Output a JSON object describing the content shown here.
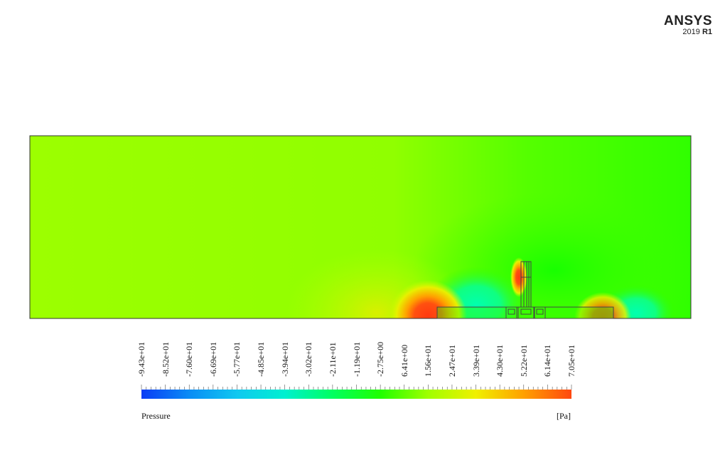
{
  "logo": {
    "brand": "ANSYS",
    "version": "2019",
    "release": "R1"
  },
  "chart_data": {
    "type": "heatmap",
    "title": "",
    "variable": "Pressure",
    "unit": "[Pa]",
    "colorbar": {
      "range": [
        -94.3,
        70.5
      ],
      "tick_labels": [
        "-9.43e+01",
        "-8.52e+01",
        "-7.60e+01",
        "-6.69e+01",
        "-5.77e+01",
        "-4.85e+01",
        "-3.94e+01",
        "-3.02e+01",
        "-2.11e+01",
        "-1.19e+01",
        "-2.75e+00",
        "6.41e+00",
        "1.56e+01",
        "2.47e+01",
        "3.39e+01",
        "4.30e+01",
        "5.22e+01",
        "6.14e+01",
        "7.05e+01"
      ],
      "colors": [
        "#0a3cf5",
        "#0a8cf5",
        "#10c8f0",
        "#00f0d0",
        "#00ff60",
        "#20ff00",
        "#a0ff00",
        "#f0f000",
        "#ffa000",
        "#ff4810"
      ]
    },
    "legend_placement": "bottom"
  }
}
